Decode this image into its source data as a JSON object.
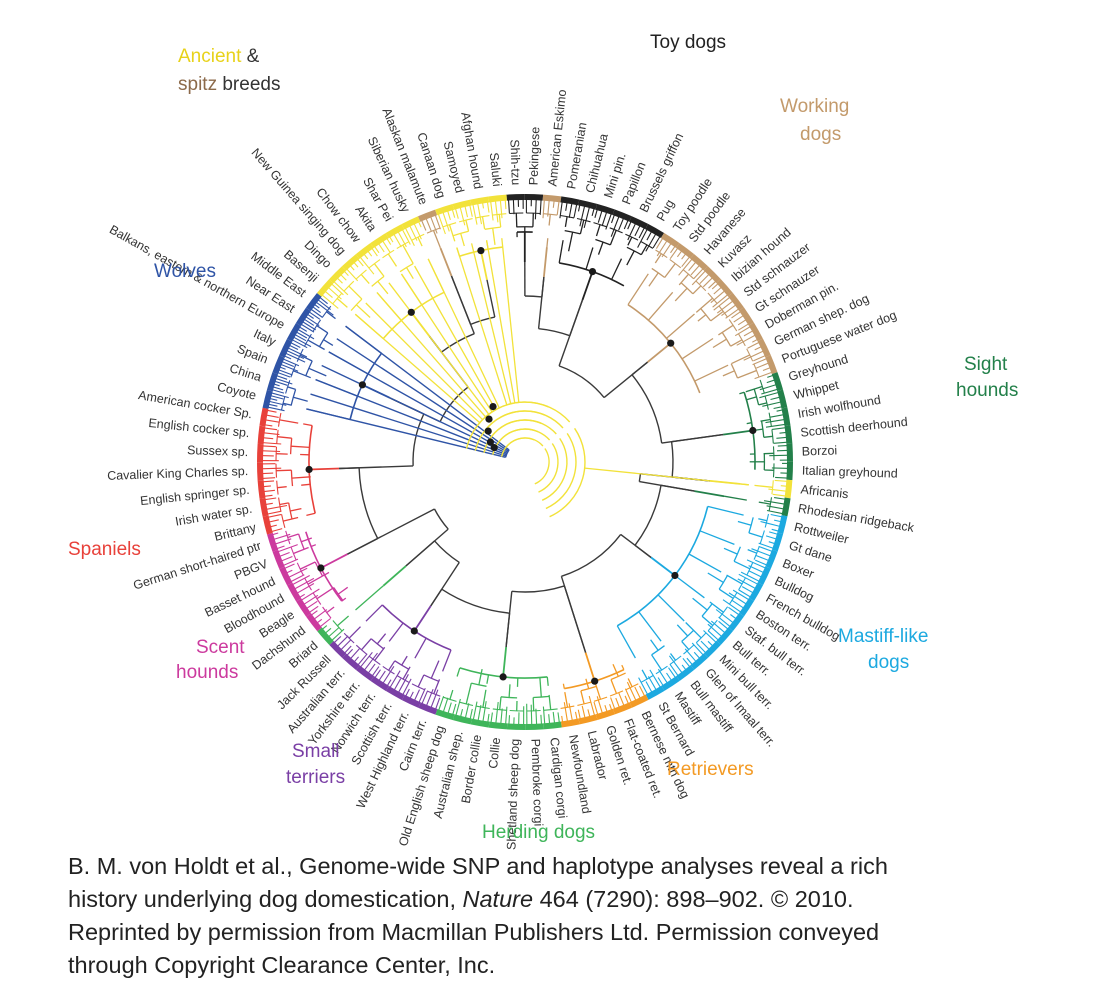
{
  "diagram": {
    "leaves": [
      {
        "name": "Shih-tzu",
        "angle": -92,
        "group": "toy"
      },
      {
        "name": "Pekingese",
        "angle": -88,
        "group": "toy"
      },
      {
        "name": "American Eskimo",
        "angle": -84,
        "group": "working"
      },
      {
        "name": "Pomeranian",
        "angle": -80,
        "group": "toy"
      },
      {
        "name": "Chihuahua",
        "angle": -76,
        "group": "toy"
      },
      {
        "name": "Mini pin.",
        "angle": -72,
        "group": "toy"
      },
      {
        "name": "Papillon",
        "angle": -68,
        "group": "toy"
      },
      {
        "name": "Brussels griffon",
        "angle": -64,
        "group": "toy"
      },
      {
        "name": "Pug",
        "angle": -60,
        "group": "toy"
      },
      {
        "name": "Toy poodle",
        "angle": -56,
        "group": "working"
      },
      {
        "name": "Std poodle",
        "angle": -52,
        "group": "working"
      },
      {
        "name": "Havanese",
        "angle": -48,
        "group": "working"
      },
      {
        "name": "Kuvasz",
        "angle": -44,
        "group": "working"
      },
      {
        "name": "Ibizian hound",
        "angle": -40,
        "group": "working"
      },
      {
        "name": "Std schnauzer",
        "angle": -35,
        "group": "working"
      },
      {
        "name": "Gt schnauzer",
        "angle": -30,
        "group": "working"
      },
      {
        "name": "Doberman pin.",
        "angle": -26,
        "group": "working"
      },
      {
        "name": "German shep. dog",
        "angle": -22,
        "group": "working"
      },
      {
        "name": "Portuguese water dog",
        "angle": -18,
        "group": "working"
      },
      {
        "name": "Greyhound",
        "angle": -12,
        "group": "sight"
      },
      {
        "name": "Whippet",
        "angle": -7,
        "group": "sight"
      },
      {
        "name": "Irish wolfhound",
        "angle": -3,
        "group": "sight"
      },
      {
        "name": "Scottish deerhound",
        "angle": 1,
        "group": "sight"
      },
      {
        "name": "Borzoi",
        "angle": 5,
        "group": "sight"
      },
      {
        "name": "Italian greyhound",
        "angle": 9,
        "group": "sight"
      },
      {
        "name": "Africanis",
        "angle": 13,
        "group": "ancient"
      },
      {
        "name": "Rhodesian ridgeback",
        "angle": 17,
        "group": "sight"
      },
      {
        "name": "Rottweiler",
        "angle": 21,
        "group": "mastiff"
      },
      {
        "name": "Gt dane",
        "angle": 26,
        "group": "mastiff"
      },
      {
        "name": "Boxer",
        "angle": 30,
        "group": "mastiff"
      },
      {
        "name": "Bulldog",
        "angle": 35,
        "group": "mastiff"
      },
      {
        "name": "French bulldog",
        "angle": 40,
        "group": "mastiff"
      },
      {
        "name": "Boston terr.",
        "angle": 44,
        "group": "mastiff"
      },
      {
        "name": "Staf. bull terr.",
        "angle": 48,
        "group": "mastiff"
      },
      {
        "name": "Bull terr.",
        "angle": 52,
        "group": "mastiff"
      },
      {
        "name": "Mini bull terr.",
        "angle": 56,
        "group": "mastiff"
      },
      {
        "name": "Glen of Imaal terr.",
        "angle": 60,
        "group": "mastiff"
      },
      {
        "name": "Bull mastiff",
        "angle": 64,
        "group": "mastiff"
      },
      {
        "name": "Mastiff",
        "angle": 68,
        "group": "mastiff"
      },
      {
        "name": "St Bernard",
        "angle": 72,
        "group": "mastiff"
      },
      {
        "name": "Bernese mtn dog",
        "angle": 76,
        "group": "retriever"
      },
      {
        "name": "Flat-coated ret.",
        "angle": 80,
        "group": "retriever"
      },
      {
        "name": "Golden ret.",
        "angle": 84,
        "group": "retriever"
      },
      {
        "name": "Labrador",
        "angle": 88,
        "group": "retriever"
      },
      {
        "name": "Newfoundland",
        "angle": 92,
        "group": "retriever"
      },
      {
        "name": "Cardigan corgi",
        "angle": 96,
        "group": "herding"
      },
      {
        "name": "Pembroke corgi",
        "angle": 100,
        "group": "herding"
      },
      {
        "name": "Shetland sheep dog",
        "angle": 104,
        "group": "herding"
      },
      {
        "name": "Collie",
        "angle": 108,
        "group": "herding"
      },
      {
        "name": "Border collie",
        "angle": 112,
        "group": "herding"
      },
      {
        "name": "Australian shep.",
        "angle": 116,
        "group": "herding"
      },
      {
        "name": "Old English sheep dog",
        "angle": 120,
        "group": "herding"
      },
      {
        "name": "Cairn terr.",
        "angle": 124,
        "group": "terrier"
      },
      {
        "name": "West Highland terr.",
        "angle": 128,
        "group": "terrier"
      },
      {
        "name": "Scottish terr.",
        "angle": 132,
        "group": "terrier"
      },
      {
        "name": "Norwich terr.",
        "angle": 136,
        "group": "terrier"
      },
      {
        "name": "Yorkshire terr.",
        "angle": 140,
        "group": "terrier"
      },
      {
        "name": "Australian terr.",
        "angle": 144,
        "group": "terrier"
      },
      {
        "name": "Jack Russell",
        "angle": 148,
        "group": "terrier"
      },
      {
        "name": "Briard",
        "angle": 152,
        "group": "herding"
      },
      {
        "name": "Dachshund",
        "angle": 156,
        "group": "scent"
      },
      {
        "name": "Beagle",
        "angle": 160,
        "group": "scent"
      },
      {
        "name": "Bloodhound",
        "angle": 164,
        "group": "scent"
      },
      {
        "name": "Basset hound",
        "angle": 168,
        "group": "scent"
      },
      {
        "name": "PBGV",
        "angle": 172,
        "group": "scent"
      },
      {
        "name": "German short-haired ptr",
        "angle": 176,
        "group": "scent"
      },
      {
        "name": "Brittany",
        "angle": 180,
        "group": "spaniel"
      },
      {
        "name": "Irish water sp.",
        "angle": 184,
        "group": "spaniel"
      },
      {
        "name": "English springer sp.",
        "angle": 188,
        "group": "spaniel"
      },
      {
        "name": "Cavalier King Charles sp.",
        "angle": 192,
        "group": "spaniel"
      },
      {
        "name": "Sussex sp.",
        "angle": 196,
        "group": "spaniel"
      },
      {
        "name": "English cocker sp.",
        "angle": 200,
        "group": "spaniel"
      },
      {
        "name": "American cocker Sp.",
        "angle": 204,
        "group": "spaniel"
      },
      {
        "name": "Coyote",
        "angle": 208,
        "group": "wolf"
      },
      {
        "name": "China",
        "angle": 212,
        "group": "wolf"
      },
      {
        "name": "Spain",
        "angle": 220,
        "group": "wolf"
      },
      {
        "name": "Italy",
        "angle": 232,
        "group": "wolf"
      },
      {
        "name": "Balkans, eastern & northern Europe",
        "angle": 246,
        "group": "wolf"
      },
      {
        "name": "Near East",
        "angle": 230,
        "group": "wolf"
      },
      {
        "name": "Middle East",
        "angle": 234,
        "group": "wolf"
      },
      {
        "name": "Basenji",
        "angle": 238,
        "group": "ancient"
      },
      {
        "name": "Dingo",
        "angle": 242,
        "group": "ancient"
      },
      {
        "name": "New Guinea singing dog",
        "angle": 246,
        "group": "ancient"
      },
      {
        "name": "Chow chow",
        "angle": 250,
        "group": "ancient"
      },
      {
        "name": "Akita",
        "angle": 254,
        "group": "ancient"
      },
      {
        "name": "Shar Pei",
        "angle": 258,
        "group": "ancient"
      },
      {
        "name": "Siberian husky",
        "angle": 262,
        "group": "ancient"
      },
      {
        "name": "Alaskan malamute",
        "angle": 266,
        "group": "working"
      },
      {
        "name": "Canaan dog",
        "angle": 270,
        "group": "ancient"
      },
      {
        "name": "Samoyed",
        "angle": 273,
        "group": "ancient"
      },
      {
        "name": "Afghan hound",
        "angle": 276,
        "group": "ancient"
      },
      {
        "name": "Saluki",
        "angle": 279,
        "group": "ancient"
      }
    ],
    "group_labels": [
      {
        "id": "ancient",
        "lines": [
          [
            {
              "text": "Ancient",
              "color": "#e8d21a"
            },
            {
              "text": " &",
              "color": "#333333"
            }
          ],
          [
            {
              "text": "spitz",
              "color": "#8c6a4a"
            },
            {
              "text": " breeds",
              "color": "#333333"
            }
          ]
        ]
      },
      {
        "id": "toy",
        "lines": [
          [
            {
              "text": "Toy dogs",
              "color": "#222222"
            }
          ]
        ]
      },
      {
        "id": "working",
        "lines": [
          [
            {
              "text": "Working",
              "color": "#c39a6b"
            }
          ],
          [
            {
              "text": "dogs",
              "color": "#c39a6b"
            }
          ]
        ]
      },
      {
        "id": "wolf",
        "lines": [
          [
            {
              "text": "Wolves",
              "color": "#2f54a6"
            }
          ]
        ]
      },
      {
        "id": "sight",
        "lines": [
          [
            {
              "text": "Sight",
              "color": "#23804a"
            }
          ],
          [
            {
              "text": "hounds",
              "color": "#23804a"
            }
          ]
        ]
      },
      {
        "id": "spaniel",
        "lines": [
          [
            {
              "text": "Spaniels",
              "color": "#e8413a"
            }
          ]
        ]
      },
      {
        "id": "mastiff",
        "lines": [
          [
            {
              "text": "Mastiff-like",
              "color": "#1ca9e0"
            }
          ],
          [
            {
              "text": "dogs",
              "color": "#1ca9e0"
            }
          ]
        ]
      },
      {
        "id": "scent",
        "lines": [
          [
            {
              "text": "Scent",
              "color": "#cc3a9e"
            }
          ],
          [
            {
              "text": "hounds",
              "color": "#cc3a9e"
            }
          ]
        ]
      },
      {
        "id": "terrier",
        "lines": [
          [
            {
              "text": "Small",
              "color": "#7a3fa5"
            }
          ],
          [
            {
              "text": "terriers",
              "color": "#7a3fa5"
            }
          ]
        ]
      },
      {
        "id": "retriever",
        "lines": [
          [
            {
              "text": "Retrievers",
              "color": "#f39a24"
            }
          ]
        ]
      },
      {
        "id": "herding",
        "lines": [
          [
            {
              "text": "Herding dogs",
              "color": "#3fb55a"
            }
          ]
        ]
      }
    ],
    "group_colors": {
      "wolf": "#2f54a6",
      "ancient": "#f2e23a",
      "working": "#c39a6b",
      "toy": "#222222",
      "sight": "#23804a",
      "mastiff": "#1ca9e0",
      "retriever": "#f39a24",
      "herding": "#3fb55a",
      "terrier": "#7a3fa5",
      "scent": "#cc3a9e",
      "spaniel": "#e8413a"
    }
  },
  "caption": {
    "line1": "B. M. von Holdt et al., Genome-wide SNP and haplotype analyses reveal a rich",
    "line2_before": "history underlying dog domestication, ",
    "line2_journal": "Nature",
    "line2_after": " 464 (7290): 898–902. © 2010.",
    "line3": "Reprinted by permission from Macmillan Publishers Ltd. Permission conveyed",
    "line4": "through Copyright Clearance Center, Inc."
  }
}
